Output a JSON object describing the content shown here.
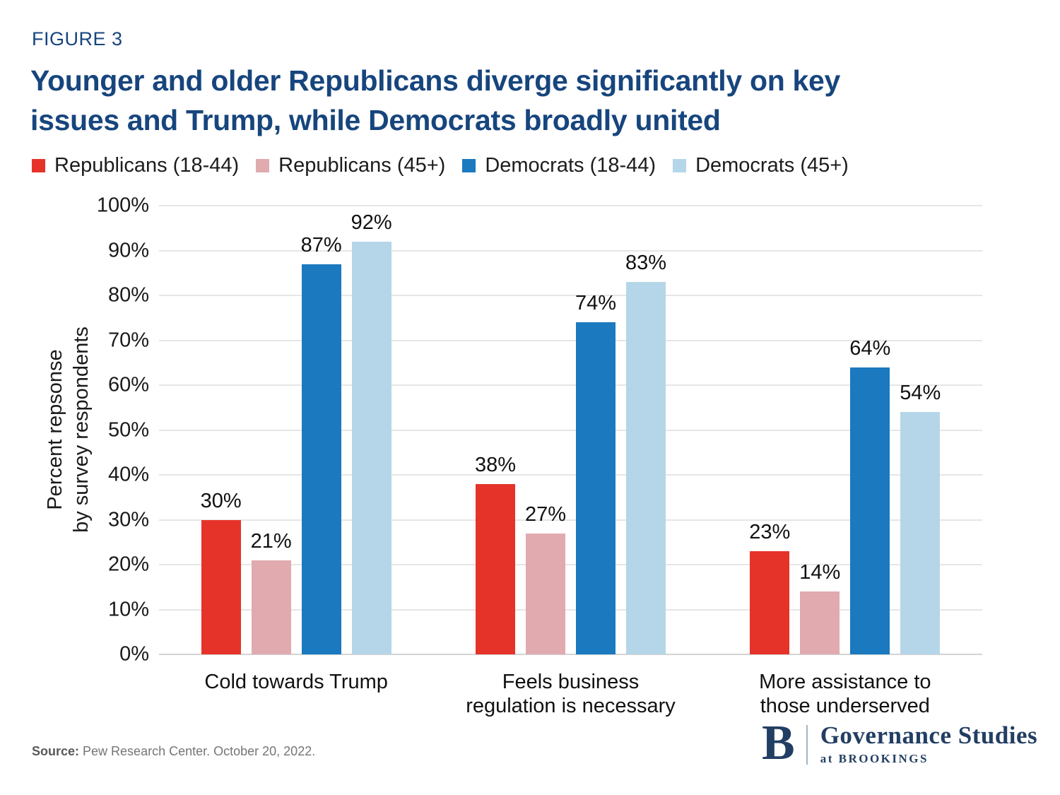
{
  "figure_label": "FIGURE 3",
  "title": {
    "line1": "Younger and older Republicans diverge significantly on key",
    "line2": "issues and Trump, while Democrats broadly united"
  },
  "colors": {
    "title_navy": "#17457d",
    "logo_navy": "#223e63",
    "grid": "#e6e6e6",
    "source_gray": "#757575",
    "red": "#e6332a",
    "pink": "#e0aaaf",
    "blue": "#1a79bf",
    "light_blue": "#b5d6e8"
  },
  "chart_data": {
    "type": "bar",
    "title": "Younger and older Republicans diverge significantly on key issues and Trump, while Democrats broadly united",
    "categories": [
      "Cold towards Trump",
      "Feels business\nregulation is necessary",
      "More assistance to\nthose underserved"
    ],
    "series": [
      {
        "name": "Republicans (18-44)",
        "color": "#e6332a",
        "values": [
          30,
          38,
          23
        ]
      },
      {
        "name": "Republicans (45+)",
        "color": "#e0aaaf",
        "values": [
          21,
          27,
          14
        ]
      },
      {
        "name": "Democrats (18-44)",
        "color": "#1a79bf",
        "values": [
          87,
          74,
          64
        ]
      },
      {
        "name": "Democrats (45+)",
        "color": "#b5d6e8",
        "values": [
          92,
          83,
          54
        ]
      }
    ],
    "ylabel": "Percent repsonse\nby survey respondents",
    "xlabel": "",
    "ylim": [
      0,
      100
    ],
    "yticks": [
      0,
      10,
      20,
      30,
      40,
      50,
      60,
      70,
      80,
      90,
      100
    ],
    "ytick_suffix": "%",
    "grid": true,
    "legend_position": "top",
    "value_labels": true
  },
  "source": {
    "prefix": "Source:",
    "text": "Pew Research Center. October 20, 2022."
  },
  "logo": {
    "b": "B",
    "name": "Governance Studies",
    "sub": "at BROOKINGS"
  }
}
